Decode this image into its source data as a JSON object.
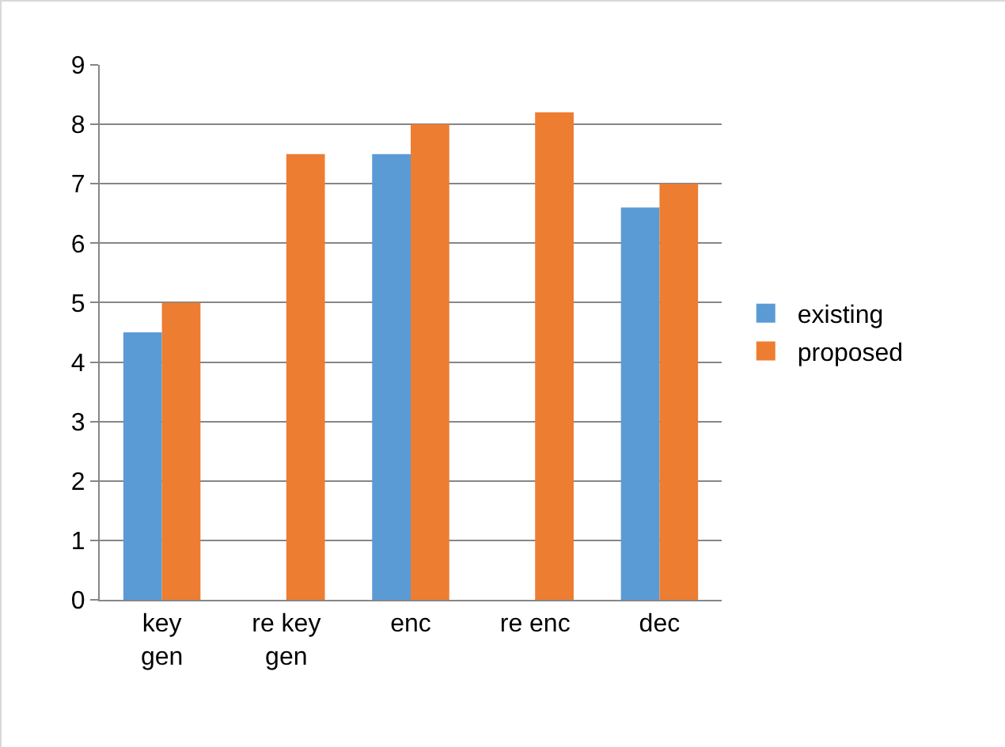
{
  "chart_data": {
    "type": "bar",
    "categories": [
      "key gen",
      "re key gen",
      "enc",
      "re enc",
      "dec"
    ],
    "series": [
      {
        "name": "existing",
        "color": "#5b9bd5",
        "values": [
          4.5,
          null,
          7.5,
          null,
          6.6
        ]
      },
      {
        "name": "proposed",
        "color": "#ed7d31",
        "values": [
          5,
          7.5,
          8,
          8.2,
          7
        ]
      }
    ],
    "ylim": [
      0,
      9
    ],
    "yticks": [
      0,
      1,
      2,
      3,
      4,
      5,
      6,
      7,
      8,
      9
    ],
    "grid": "y",
    "legend": "right"
  }
}
